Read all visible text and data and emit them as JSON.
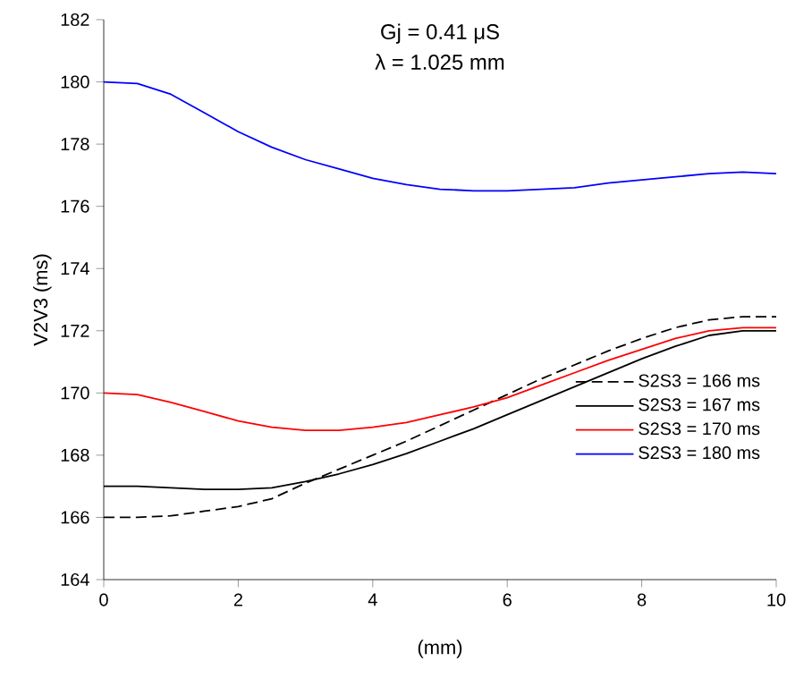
{
  "chart_data": {
    "type": "line",
    "title": "Gj = 0.41 μS",
    "subtitle": "λ = 1.025 mm",
    "xlabel": "(mm)",
    "ylabel": "V2V3 (ms)",
    "x": [
      0,
      0.5,
      1,
      1.5,
      2,
      2.5,
      3,
      3.5,
      4,
      4.5,
      5,
      5.5,
      6,
      6.5,
      7,
      7.5,
      8,
      8.5,
      9,
      9.5,
      10
    ],
    "series": [
      {
        "name": "S2S3 = 166 ms",
        "color": "#000000",
        "line_style": "dashed",
        "values": [
          166,
          166,
          166.05,
          166.2,
          166.35,
          166.6,
          167.1,
          167.55,
          168,
          168.45,
          168.95,
          169.45,
          169.95,
          170.45,
          170.9,
          171.35,
          171.75,
          172.1,
          172.35,
          172.45,
          172.45
        ]
      },
      {
        "name": "S2S3 = 167 ms",
        "color": "#000000",
        "line_style": "solid",
        "values": [
          167,
          167,
          166.95,
          166.9,
          166.9,
          166.95,
          167.15,
          167.4,
          167.7,
          168.05,
          168.45,
          168.85,
          169.3,
          169.75,
          170.2,
          170.65,
          171.1,
          171.5,
          171.85,
          172,
          172
        ]
      },
      {
        "name": "S2S3 = 170 ms",
        "color": "#ff0000",
        "line_style": "solid",
        "values": [
          170,
          169.95,
          169.7,
          169.4,
          169.1,
          168.9,
          168.8,
          168.8,
          168.9,
          169.05,
          169.3,
          169.55,
          169.85,
          170.25,
          170.65,
          171.05,
          171.4,
          171.75,
          172,
          172.1,
          172.1
        ]
      },
      {
        "name": "S2S3 = 180 ms",
        "color": "#0000ff",
        "line_style": "solid",
        "values": [
          180,
          179.95,
          179.6,
          179,
          178.4,
          177.9,
          177.5,
          177.2,
          176.9,
          176.7,
          176.55,
          176.5,
          176.5,
          176.55,
          176.6,
          176.75,
          176.85,
          176.95,
          177.05,
          177.1,
          177.05
        ]
      }
    ],
    "xlim": [
      0,
      10
    ],
    "xticks": [
      0,
      2,
      4,
      6,
      8,
      10
    ],
    "ylim": [
      164,
      182
    ],
    "yticks": [
      164,
      166,
      168,
      170,
      172,
      174,
      176,
      178,
      180,
      182
    ],
    "grid": false,
    "legend": "right",
    "marker": "none"
  }
}
